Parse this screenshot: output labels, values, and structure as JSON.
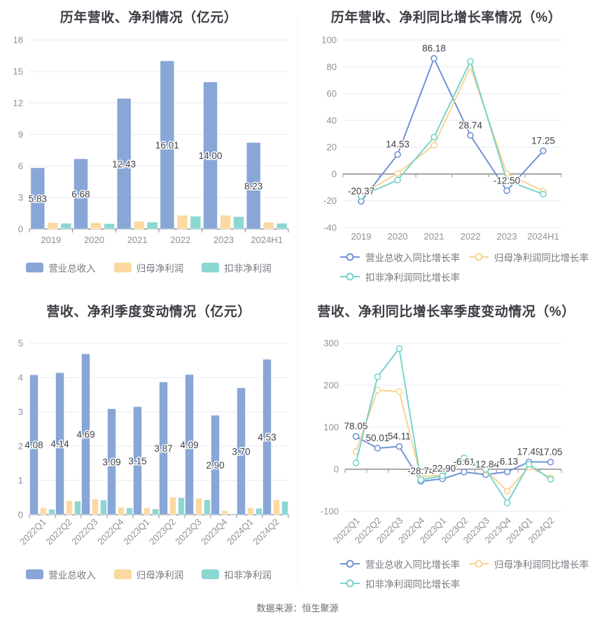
{
  "page": {
    "footer": "数据来源：恒生聚源",
    "background": "#ffffff"
  },
  "colors": {
    "bar": [
      "#88A6D6",
      "#FBD9A1",
      "#8CD7D2"
    ],
    "line": [
      "#7293D6",
      "#F9D492",
      "#76D4CD"
    ],
    "grid": "#E4EAF6",
    "axis": "#55555C",
    "axis_tick": "#8F8F98",
    "tick_label": "#909099",
    "data_label": "#40404A",
    "title": "#3C3C44",
    "legend_text": "#77777F"
  },
  "chart_data": [
    {
      "id": "annual-bar",
      "type": "bar",
      "title": "历年营收、净利情况（亿元）",
      "ylabel": "",
      "xlabel": "",
      "ylim": [
        0,
        18
      ],
      "yticks": [
        0,
        3,
        6,
        9,
        12,
        15,
        18
      ],
      "grid": true,
      "legend_position": "bottom-center",
      "categories": [
        "2019",
        "2020",
        "2021",
        "2022",
        "2023",
        "2024H1"
      ],
      "series": [
        {
          "key": "revenue",
          "name": "营业总收入",
          "values": [
            5.83,
            6.68,
            12.43,
            16.01,
            14.0,
            8.23
          ],
          "labels": [
            "5.83",
            "6.68",
            "12.43",
            "16.01",
            "14.00",
            "8.23"
          ]
        },
        {
          "key": "net-profit",
          "name": "归母净利润",
          "values": [
            0.6,
            0.6,
            0.73,
            1.31,
            1.32,
            0.65
          ]
        },
        {
          "key": "deducted-net-profit",
          "name": "扣非净利润",
          "values": [
            0.55,
            0.52,
            0.66,
            1.22,
            1.18,
            0.55
          ]
        }
      ]
    },
    {
      "id": "annual-growth",
      "type": "line",
      "title": "历年营收、净利同比增长率情况（%）",
      "ylabel": "",
      "xlabel": "",
      "ylim": [
        -40,
        100
      ],
      "yticks": [
        -40,
        -20,
        0,
        20,
        40,
        60,
        80,
        100
      ],
      "grid": true,
      "legend_position": "bottom-left",
      "categories": [
        "2019",
        "2020",
        "2021",
        "2022",
        "2023",
        "2024H1"
      ],
      "series": [
        {
          "key": "revenue-yoy",
          "name": "营业总收入同比增长率",
          "values": [
            -20.37,
            14.53,
            86.18,
            28.74,
            -12.5,
            17.25
          ],
          "labels": [
            "-20.37",
            "14.53",
            "86.18",
            "28.74",
            "-12.50",
            "17.25"
          ]
        },
        {
          "key": "net-profit-yoy",
          "name": "归母净利润同比增长率",
          "values": [
            -15.5,
            0.5,
            21.5,
            80.0,
            0.3,
            -12.8
          ]
        },
        {
          "key": "deducted-net-profit-yoy",
          "name": "扣非净利润同比增长率",
          "values": [
            -16.5,
            -4.5,
            27.5,
            84.0,
            -5.0,
            -15.0
          ]
        }
      ]
    },
    {
      "id": "quarter-bar",
      "type": "bar",
      "title": "营收、净利季度变动情况（亿元）",
      "ylabel": "",
      "xlabel": "",
      "ylim": [
        0,
        5
      ],
      "yticks": [
        0,
        1,
        2,
        3,
        4,
        5
      ],
      "grid": true,
      "legend_position": "bottom-center",
      "categories": [
        "2022Q1",
        "2022Q2",
        "2022Q3",
        "2022Q4",
        "2023Q1",
        "2023Q2",
        "2023Q3",
        "2023Q4",
        "2024Q1",
        "2024Q2"
      ],
      "series": [
        {
          "key": "revenue",
          "name": "营业总收入",
          "values": [
            4.08,
            4.14,
            4.69,
            3.09,
            3.15,
            3.87,
            4.09,
            2.9,
            3.7,
            4.53
          ],
          "labels": [
            "4.08",
            "4.14",
            "4.69",
            "3.09",
            "3.15",
            "3.87",
            "4.09",
            "2.90",
            "3.70",
            "4.53"
          ]
        },
        {
          "key": "net-profit",
          "name": "归母净利润",
          "values": [
            0.2,
            0.41,
            0.46,
            0.22,
            0.2,
            0.51,
            0.48,
            0.12,
            0.21,
            0.43
          ]
        },
        {
          "key": "deducted-net-profit",
          "name": "扣非净利润",
          "values": [
            0.16,
            0.4,
            0.43,
            0.2,
            0.17,
            0.5,
            0.44,
            0.03,
            0.19,
            0.39
          ]
        }
      ]
    },
    {
      "id": "quarter-growth",
      "type": "line",
      "title": "营收、净利同比增长率季度变动情况（%）",
      "ylabel": "",
      "xlabel": "",
      "ylim": [
        -100,
        300
      ],
      "yticks": [
        -100,
        0,
        100,
        200,
        300
      ],
      "grid": true,
      "legend_position": "bottom-left",
      "categories": [
        "2022Q1",
        "2022Q2",
        "2022Q3",
        "2022Q4",
        "2023Q1",
        "2023Q2",
        "2023Q3",
        "2023Q4",
        "2024Q1",
        "2024Q2"
      ],
      "series": [
        {
          "key": "revenue-yoy",
          "name": "营业总收入同比增长率",
          "values": [
            78.05,
            50.01,
            54.11,
            -28.74,
            -22.9,
            -6.61,
            -12.84,
            -6.13,
            17.49,
            17.05
          ],
          "labels": [
            "78.05",
            "50.01",
            "54.11",
            "-28.74",
            "-22.90",
            "-6.61",
            "-12.84",
            "-6.13",
            "17.49",
            "17.05"
          ]
        },
        {
          "key": "net-profit-yoy",
          "name": "归母净利润同比增长率",
          "values": [
            42,
            188,
            185,
            -18,
            -14,
            20,
            -2,
            -52,
            5,
            -20
          ]
        },
        {
          "key": "deducted-net-profit-yoy",
          "name": "扣非净利润同比增长率",
          "values": [
            15,
            220,
            287,
            -25,
            -16,
            27,
            0,
            -80,
            12,
            -24
          ]
        }
      ]
    }
  ]
}
